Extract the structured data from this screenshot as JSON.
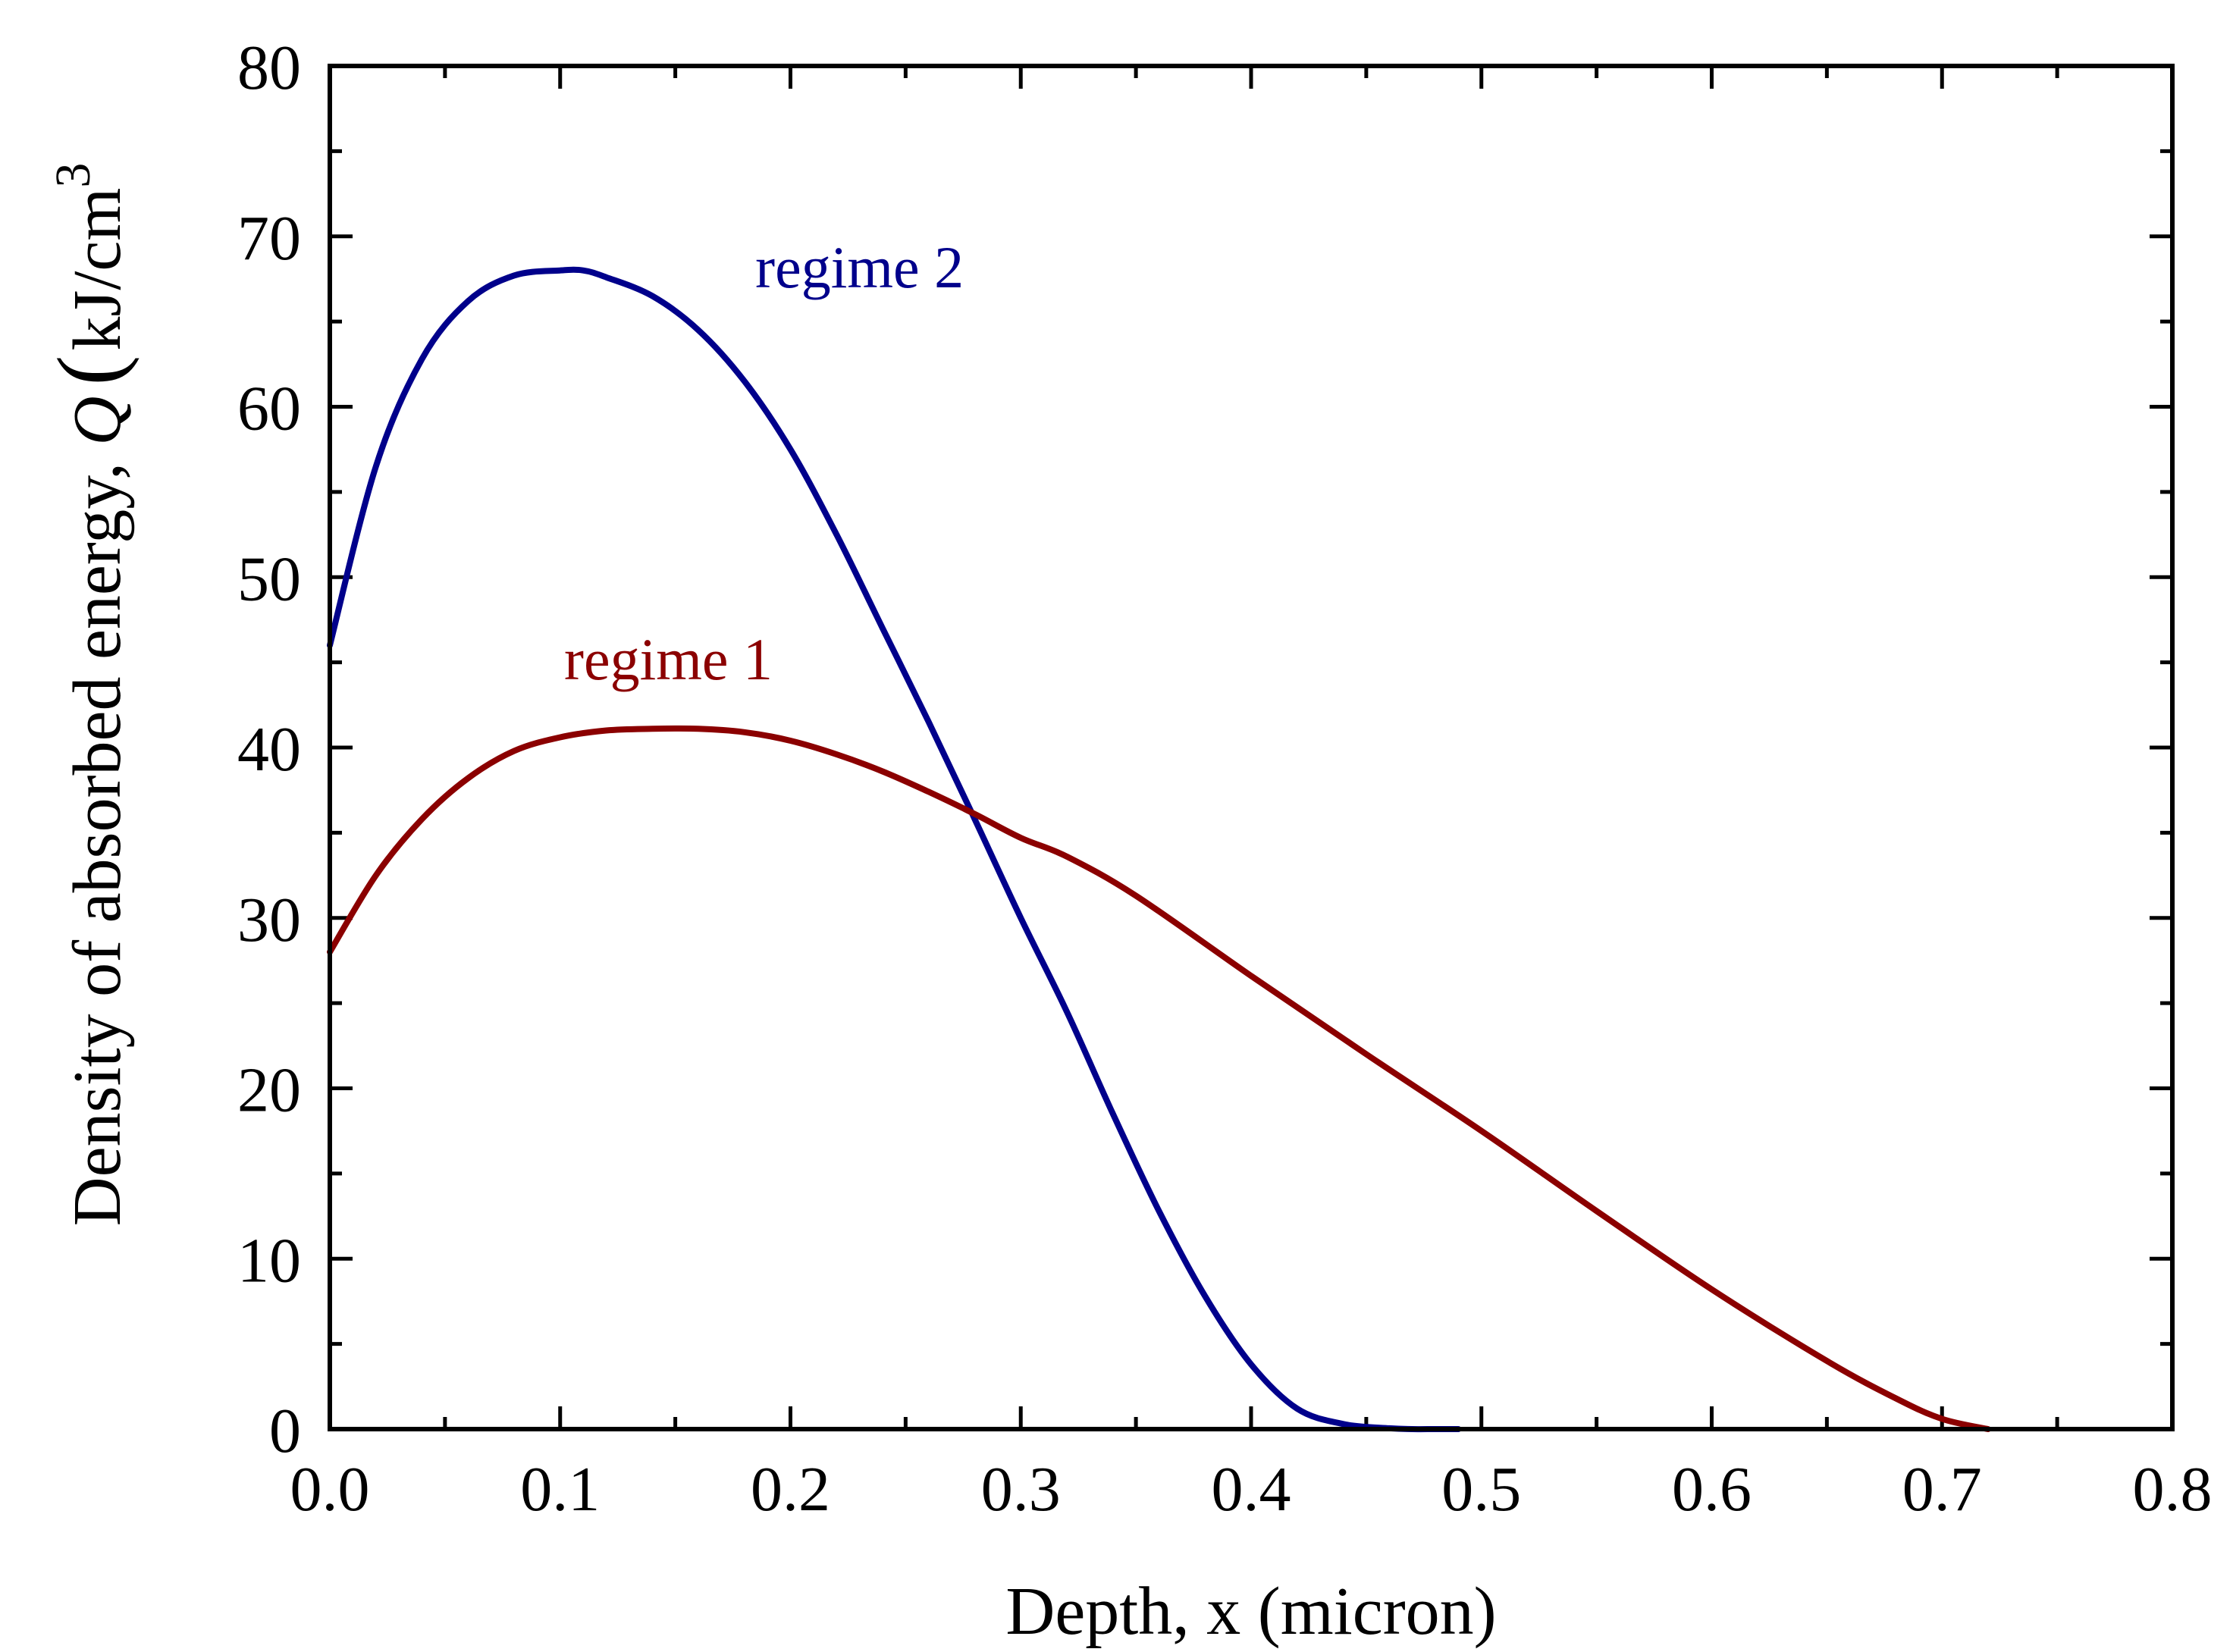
{
  "chart_data": {
    "type": "line",
    "title": "",
    "xlabel": "Depth, x (micron)",
    "ylabel_text": "Density of absorbed energy, ",
    "ylabel_symbol": "Q",
    "ylabel_paren": "(",
    "ylabel_unit": "kJ/cm",
    "ylabel_exponent": "3",
    "xlim": [
      0.0,
      0.8
    ],
    "ylim": [
      0,
      80
    ],
    "xticks": [
      0.0,
      0.1,
      0.2,
      0.3,
      0.4,
      0.5,
      0.6,
      0.7,
      0.8
    ],
    "xtick_labels": [
      "0.0",
      "0.1",
      "0.2",
      "0.3",
      "0.4",
      "0.5",
      "0.6",
      "0.7",
      "0.8"
    ],
    "yticks": [
      0,
      10,
      20,
      30,
      40,
      50,
      60,
      70,
      80
    ],
    "ytick_labels": [
      "0",
      "10",
      "20",
      "30",
      "40",
      "50",
      "60",
      "70",
      "80"
    ],
    "grid": false,
    "series": [
      {
        "name": "regime 2",
        "color": "#00008b",
        "label_at": [
          0.23,
          67
        ],
        "x": [
          0.0,
          0.02,
          0.04,
          0.06,
          0.08,
          0.1,
          0.11,
          0.12,
          0.14,
          0.16,
          0.18,
          0.2,
          0.22,
          0.24,
          0.26,
          0.28,
          0.3,
          0.32,
          0.34,
          0.36,
          0.38,
          0.4,
          0.42,
          0.44,
          0.46,
          0.47,
          0.48,
          0.49
        ],
        "values": [
          46,
          56.5,
          62.8,
          66.2,
          67.7,
          68.0,
          68.0,
          67.6,
          66.5,
          64.5,
          61.5,
          57.5,
          52.5,
          47.0,
          41.5,
          35.8,
          30.0,
          24.5,
          18.5,
          12.8,
          7.8,
          3.8,
          1.2,
          0.3,
          0.05,
          0.0,
          0.0,
          0.0
        ]
      },
      {
        "name": "regime 1",
        "color": "#8b0000",
        "label_at": [
          0.147,
          44
        ],
        "x": [
          0.0,
          0.02,
          0.04,
          0.06,
          0.08,
          0.1,
          0.12,
          0.14,
          0.16,
          0.18,
          0.2,
          0.22,
          0.24,
          0.26,
          0.28,
          0.3,
          0.32,
          0.35,
          0.4,
          0.45,
          0.5,
          0.55,
          0.6,
          0.65,
          0.68,
          0.7,
          0.72
        ],
        "values": [
          28,
          32.5,
          35.8,
          38.2,
          39.8,
          40.6,
          41.0,
          41.1,
          41.1,
          40.9,
          40.4,
          39.6,
          38.6,
          37.4,
          36.1,
          34.7,
          33.6,
          31.3,
          26.6,
          22.0,
          17.5,
          12.8,
          8.2,
          4.0,
          1.8,
          0.6,
          0.0
        ]
      }
    ]
  }
}
